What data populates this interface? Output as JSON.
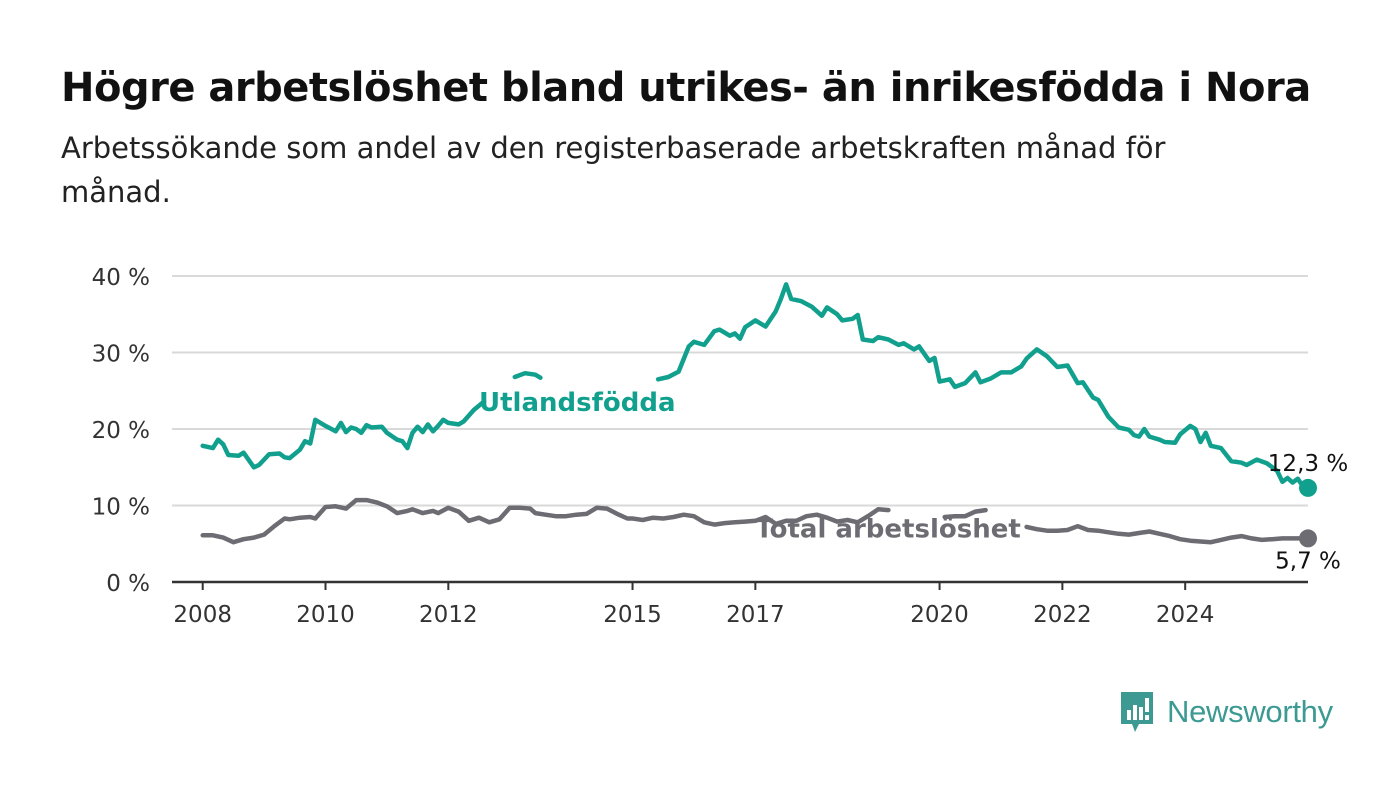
{
  "header": {
    "title": "Högre arbetslöshet bland utrikes- än inrikesfödda i Nora",
    "subtitle": "Arbetssökande som andel av den registerbaserade arbetskraften månad för månad."
  },
  "brand": {
    "name": "Newsworthy",
    "icon": "newsworthy-logo-icon",
    "color": "#3c9a93"
  },
  "colors": {
    "utlandsfodda": "#12a08e",
    "total": "#6e6c73",
    "grid": "#d9d9d9",
    "axis": "#333333"
  },
  "chart_data": {
    "type": "line",
    "title": "Högre arbetslöshet bland utrikes- än inrikesfödda i Nora",
    "subtitle": "Arbetssökande som andel av den registerbaserade arbetskraften månad för månad.",
    "xlabel": "",
    "ylabel": "",
    "ylim": [
      0,
      40
    ],
    "xlim": [
      "2007-07",
      "2026-01"
    ],
    "yticks": [
      0,
      10,
      20,
      30,
      40
    ],
    "ytick_labels": [
      "0 %",
      "10 %",
      "20 %",
      "30 %",
      "40 %"
    ],
    "xticks": [
      "2008-01",
      "2010-01",
      "2012-01",
      "2015-01",
      "2017-01",
      "2020-01",
      "2022-01",
      "2024-01"
    ],
    "xtick_labels": [
      "2008",
      "2010",
      "2012",
      "2015",
      "2017",
      "2020",
      "2022",
      "2024"
    ],
    "grid": true,
    "series": [
      {
        "name": "Utlandsfödda",
        "color": "#12a08e",
        "end_label": "12,3 %",
        "points": [
          [
            "2008-01",
            17.8
          ],
          [
            "2008-03",
            17.5
          ],
          [
            "2008-04",
            18.6
          ],
          [
            "2008-05",
            18.0
          ],
          [
            "2008-06",
            16.6
          ],
          [
            "2008-08",
            16.5
          ],
          [
            "2008-09",
            16.9
          ],
          [
            "2008-11",
            15.0
          ],
          [
            "2008-12",
            15.3
          ],
          [
            "2009-02",
            16.7
          ],
          [
            "2009-04",
            16.8
          ],
          [
            "2009-05",
            16.3
          ],
          [
            "2009-06",
            16.2
          ],
          [
            "2009-08",
            17.3
          ],
          [
            "2009-09",
            18.4
          ],
          [
            "2009-10",
            18.1
          ],
          [
            "2009-11",
            21.2
          ],
          [
            "2010-01",
            20.4
          ],
          [
            "2010-03",
            19.7
          ],
          [
            "2010-04",
            20.8
          ],
          [
            "2010-05",
            19.6
          ],
          [
            "2010-06",
            20.2
          ],
          [
            "2010-07",
            20.0
          ],
          [
            "2010-08",
            19.5
          ],
          [
            "2010-09",
            20.5
          ],
          [
            "2010-10",
            20.2
          ],
          [
            "2010-12",
            20.3
          ],
          [
            "2011-01",
            19.5
          ],
          [
            "2011-03",
            18.6
          ],
          [
            "2011-04",
            18.4
          ],
          [
            "2011-05",
            17.5
          ],
          [
            "2011-06",
            19.5
          ],
          [
            "2011-07",
            20.3
          ],
          [
            "2011-08",
            19.6
          ],
          [
            "2011-09",
            20.6
          ],
          [
            "2011-10",
            19.7
          ],
          [
            "2011-11",
            20.4
          ],
          [
            "2011-12",
            21.2
          ],
          [
            "2012-01",
            20.8
          ],
          [
            "2012-03",
            20.6
          ],
          [
            "2012-04",
            21.0
          ],
          [
            "2012-06",
            22.5
          ],
          [
            "2012-08",
            23.6
          ],
          [
            null,
            null
          ],
          [
            "2013-02",
            26.8
          ],
          [
            "2013-04",
            27.3
          ],
          [
            "2013-06",
            27.1
          ],
          [
            "2013-07",
            26.7
          ],
          [
            null,
            null
          ],
          [
            "2015-06",
            26.5
          ],
          [
            "2015-08",
            26.8
          ],
          [
            "2015-10",
            27.5
          ],
          [
            "2015-12",
            30.8
          ],
          [
            "2016-01",
            31.4
          ],
          [
            "2016-03",
            31.0
          ],
          [
            "2016-05",
            32.8
          ],
          [
            "2016-06",
            33.0
          ],
          [
            "2016-08",
            32.2
          ],
          [
            "2016-09",
            32.5
          ],
          [
            "2016-10",
            31.8
          ],
          [
            "2016-11",
            33.3
          ],
          [
            "2017-01",
            34.2
          ],
          [
            "2017-03",
            33.4
          ],
          [
            "2017-05",
            35.4
          ],
          [
            "2017-06",
            37.0
          ],
          [
            "2017-07",
            38.9
          ],
          [
            "2017-08",
            37.0
          ],
          [
            "2017-10",
            36.7
          ],
          [
            "2017-12",
            36.0
          ],
          [
            "2018-01",
            35.4
          ],
          [
            "2018-02",
            34.8
          ],
          [
            "2018-03",
            35.9
          ],
          [
            "2018-05",
            35.0
          ],
          [
            "2018-06",
            34.2
          ],
          [
            "2018-08",
            34.4
          ],
          [
            "2018-09",
            34.9
          ],
          [
            "2018-10",
            31.7
          ],
          [
            "2018-12",
            31.5
          ],
          [
            "2019-01",
            32.0
          ],
          [
            "2019-03",
            31.7
          ],
          [
            "2019-05",
            31.0
          ],
          [
            "2019-06",
            31.2
          ],
          [
            "2019-08",
            30.4
          ],
          [
            "2019-09",
            30.8
          ],
          [
            "2019-11",
            28.9
          ],
          [
            "2019-12",
            29.3
          ],
          [
            "2020-01",
            26.2
          ],
          [
            "2020-03",
            26.5
          ],
          [
            "2020-04",
            25.5
          ],
          [
            "2020-06",
            26.0
          ],
          [
            "2020-08",
            27.4
          ],
          [
            "2020-09",
            26.1
          ],
          [
            "2020-11",
            26.6
          ],
          [
            "2021-01",
            27.4
          ],
          [
            "2021-03",
            27.4
          ],
          [
            "2021-05",
            28.2
          ],
          [
            "2021-06",
            29.2
          ],
          [
            "2021-08",
            30.4
          ],
          [
            "2021-10",
            29.5
          ],
          [
            "2021-12",
            28.1
          ],
          [
            "2022-02",
            28.3
          ],
          [
            "2022-04",
            26.0
          ],
          [
            "2022-05",
            26.1
          ],
          [
            "2022-07",
            24.1
          ],
          [
            "2022-08",
            23.8
          ],
          [
            "2022-10",
            21.6
          ],
          [
            "2022-12",
            20.2
          ],
          [
            "2023-02",
            19.9
          ],
          [
            "2023-03",
            19.2
          ],
          [
            "2023-04",
            19.0
          ],
          [
            "2023-05",
            20.0
          ],
          [
            "2023-06",
            19.0
          ],
          [
            "2023-08",
            18.6
          ],
          [
            "2023-09",
            18.3
          ],
          [
            "2023-11",
            18.2
          ],
          [
            "2023-12",
            19.3
          ],
          [
            "2024-02",
            20.4
          ],
          [
            "2024-03",
            20.0
          ],
          [
            "2024-04",
            18.3
          ],
          [
            "2024-05",
            19.5
          ],
          [
            "2024-06",
            17.8
          ],
          [
            "2024-08",
            17.5
          ],
          [
            "2024-10",
            15.8
          ],
          [
            "2024-12",
            15.6
          ],
          [
            "2025-01",
            15.3
          ],
          [
            "2025-03",
            16.0
          ],
          [
            "2025-05",
            15.5
          ],
          [
            "2025-07",
            14.5
          ],
          [
            "2025-08",
            13.1
          ],
          [
            "2025-09",
            13.6
          ],
          [
            "2025-10",
            13.0
          ],
          [
            "2025-11",
            13.5
          ],
          [
            "2025-12",
            12.5
          ],
          [
            "2026-01",
            12.3
          ]
        ]
      },
      {
        "name": "Total arbetslöshet",
        "color": "#6e6c73",
        "end_label": "5,7 %",
        "points": [
          [
            "2008-01",
            6.1
          ],
          [
            "2008-03",
            6.1
          ],
          [
            "2008-05",
            5.8
          ],
          [
            "2008-07",
            5.2
          ],
          [
            "2008-09",
            5.6
          ],
          [
            "2008-11",
            5.8
          ],
          [
            "2009-01",
            6.2
          ],
          [
            "2009-03",
            7.3
          ],
          [
            "2009-05",
            8.3
          ],
          [
            "2009-06",
            8.2
          ],
          [
            "2009-08",
            8.4
          ],
          [
            "2009-10",
            8.5
          ],
          [
            "2009-11",
            8.3
          ],
          [
            "2010-01",
            9.8
          ],
          [
            "2010-03",
            9.9
          ],
          [
            "2010-05",
            9.6
          ],
          [
            "2010-07",
            10.7
          ],
          [
            "2010-09",
            10.7
          ],
          [
            "2010-11",
            10.4
          ],
          [
            "2011-01",
            9.9
          ],
          [
            "2011-03",
            9.0
          ],
          [
            "2011-05",
            9.3
          ],
          [
            "2011-06",
            9.5
          ],
          [
            "2011-08",
            9.0
          ],
          [
            "2011-10",
            9.3
          ],
          [
            "2011-11",
            9.0
          ],
          [
            "2012-01",
            9.7
          ],
          [
            "2012-03",
            9.2
          ],
          [
            "2012-05",
            8.0
          ],
          [
            "2012-07",
            8.4
          ],
          [
            "2012-09",
            7.8
          ],
          [
            "2012-11",
            8.2
          ],
          [
            "2013-01",
            9.7
          ],
          [
            "2013-03",
            9.7
          ],
          [
            "2013-05",
            9.6
          ],
          [
            "2013-06",
            9.0
          ],
          [
            "2013-08",
            8.8
          ],
          [
            "2013-10",
            8.6
          ],
          [
            "2013-12",
            8.6
          ],
          [
            "2014-02",
            8.8
          ],
          [
            "2014-04",
            8.9
          ],
          [
            "2014-06",
            9.7
          ],
          [
            "2014-08",
            9.6
          ],
          [
            "2014-10",
            8.9
          ],
          [
            "2014-12",
            8.3
          ],
          [
            "2015-01",
            8.3
          ],
          [
            "2015-03",
            8.1
          ],
          [
            "2015-05",
            8.4
          ],
          [
            "2015-07",
            8.3
          ],
          [
            "2015-09",
            8.5
          ],
          [
            "2015-11",
            8.8
          ],
          [
            "2016-01",
            8.6
          ],
          [
            "2016-03",
            7.8
          ],
          [
            "2016-05",
            7.5
          ],
          [
            "2016-07",
            7.7
          ],
          [
            "2016-09",
            7.8
          ],
          [
            "2016-11",
            7.9
          ],
          [
            "2017-01",
            8.0
          ],
          [
            "2017-03",
            8.5
          ],
          [
            "2017-05",
            7.6
          ],
          [
            "2017-07",
            8.0
          ],
          [
            "2017-09",
            8.0
          ],
          [
            "2017-11",
            8.6
          ],
          [
            "2018-01",
            8.8
          ],
          [
            "2018-03",
            8.4
          ],
          [
            "2018-05",
            7.9
          ],
          [
            "2018-07",
            8.1
          ],
          [
            "2018-09",
            7.8
          ],
          [
            "2018-11",
            8.6
          ],
          [
            "2019-01",
            9.5
          ],
          [
            "2019-03",
            9.4
          ],
          [
            null,
            null
          ],
          [
            "2020-02",
            8.5
          ],
          [
            "2020-04",
            8.6
          ],
          [
            "2020-06",
            8.6
          ],
          [
            "2020-08",
            9.2
          ],
          [
            "2020-10",
            9.4
          ],
          [
            null,
            null
          ],
          [
            "2021-06",
            7.2
          ],
          [
            "2021-08",
            6.9
          ],
          [
            "2021-10",
            6.7
          ],
          [
            "2021-12",
            6.7
          ],
          [
            "2022-02",
            6.8
          ],
          [
            "2022-04",
            7.3
          ],
          [
            "2022-06",
            6.8
          ],
          [
            "2022-08",
            6.7
          ],
          [
            "2022-10",
            6.5
          ],
          [
            "2022-12",
            6.3
          ],
          [
            "2023-02",
            6.2
          ],
          [
            "2023-04",
            6.4
          ],
          [
            "2023-06",
            6.6
          ],
          [
            "2023-08",
            6.3
          ],
          [
            "2023-10",
            6.0
          ],
          [
            "2023-12",
            5.6
          ],
          [
            "2024-02",
            5.4
          ],
          [
            "2024-04",
            5.3
          ],
          [
            "2024-06",
            5.2
          ],
          [
            "2024-08",
            5.5
          ],
          [
            "2024-10",
            5.8
          ],
          [
            "2024-12",
            6.0
          ],
          [
            "2025-02",
            5.7
          ],
          [
            "2025-04",
            5.5
          ],
          [
            "2025-06",
            5.6
          ],
          [
            "2025-08",
            5.7
          ],
          [
            "2025-10",
            5.7
          ],
          [
            "2025-12",
            5.7
          ],
          [
            "2026-01",
            5.7
          ]
        ]
      }
    ],
    "annotations": [
      {
        "text": "Utlandsfödda",
        "series": "Utlandsfödda",
        "at": [
          "2012-07",
          23.5
        ]
      },
      {
        "text": "Total arbetslöshet",
        "series": "Total arbetslöshet",
        "at": [
          "2017-01",
          7.0
        ]
      }
    ]
  }
}
